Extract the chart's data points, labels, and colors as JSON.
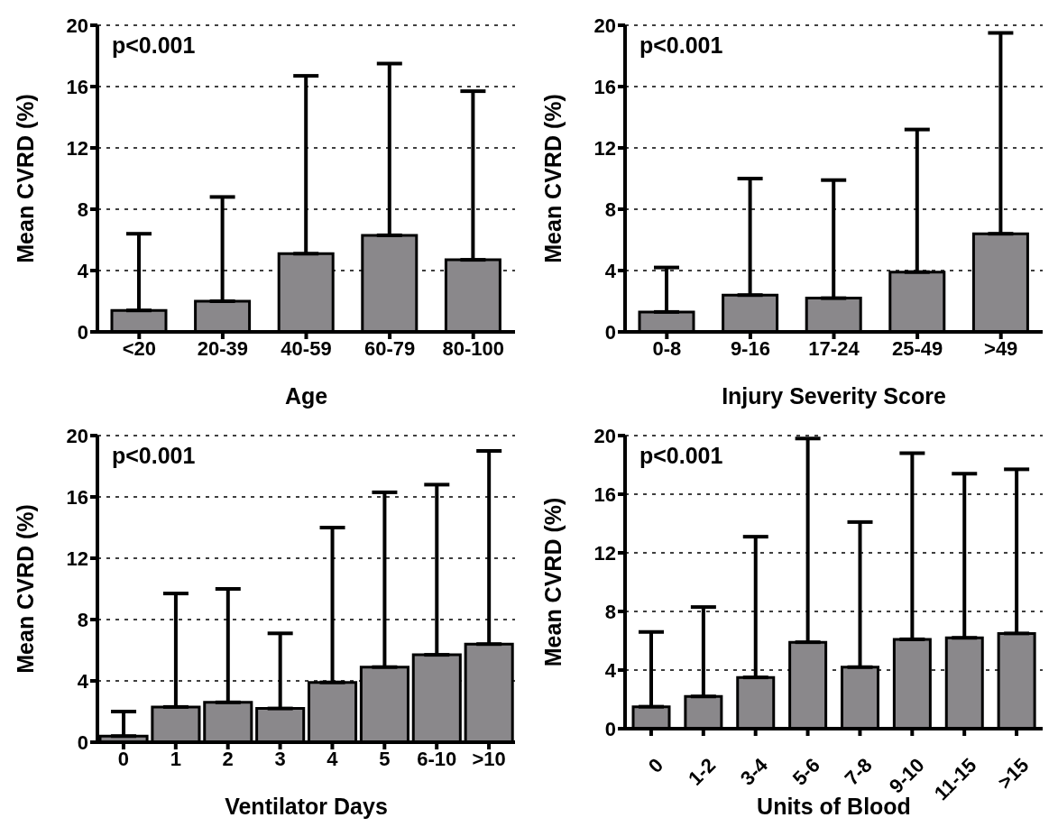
{
  "chart_data": [
    {
      "type": "bar",
      "xlabel": "Age",
      "ylabel": "Mean CVRD (%)",
      "categories": [
        "<20",
        "20-39",
        "40-59",
        "60-79",
        "80-100"
      ],
      "values": [
        1.4,
        2.0,
        5.1,
        6.3,
        4.7
      ],
      "errors": [
        [
          1.4,
          6.4
        ],
        [
          2.0,
          8.8
        ],
        [
          5.1,
          16.7
        ],
        [
          6.3,
          17.5
        ],
        [
          4.7,
          15.7
        ]
      ],
      "color": "#8a888b",
      "ylim": [
        0,
        20
      ],
      "yticks": [
        0,
        4,
        8,
        12,
        16,
        20
      ],
      "grid": "y",
      "annotations": [
        "p<0.001"
      ]
    },
    {
      "type": "bar",
      "xlabel": "Injury Severity Score",
      "ylabel": "Mean CVRD (%)",
      "categories": [
        "0-8",
        "9-16",
        "17-24",
        "25-49",
        ">49"
      ],
      "values": [
        1.3,
        2.4,
        2.2,
        3.9,
        6.4
      ],
      "errors": [
        [
          1.3,
          4.2
        ],
        [
          2.4,
          10.0
        ],
        [
          2.2,
          9.9
        ],
        [
          3.9,
          13.2
        ],
        [
          6.4,
          19.5
        ]
      ],
      "color": "#8a888b",
      "ylim": [
        0,
        20
      ],
      "yticks": [
        0,
        4,
        8,
        12,
        16,
        20
      ],
      "grid": "y",
      "annotations": [
        "p<0.001"
      ]
    },
    {
      "type": "bar",
      "xlabel": "Ventilator Days",
      "ylabel": "Mean CVRD (%)",
      "categories": [
        "0",
        "1",
        "2",
        "3",
        "4",
        "5",
        "6-10",
        ">10"
      ],
      "values": [
        0.4,
        2.3,
        2.6,
        2.2,
        3.9,
        4.9,
        5.7,
        6.4
      ],
      "errors": [
        [
          0.4,
          2.0
        ],
        [
          2.3,
          9.7
        ],
        [
          2.6,
          10.0
        ],
        [
          2.2,
          7.1
        ],
        [
          3.9,
          14.0
        ],
        [
          4.9,
          16.3
        ],
        [
          5.7,
          16.8
        ],
        [
          6.4,
          19.0
        ]
      ],
      "color": "#8a888b",
      "ylim": [
        0,
        20
      ],
      "yticks": [
        0,
        4,
        8,
        12,
        16,
        20
      ],
      "grid": "y",
      "annotations": [
        "p<0.001"
      ]
    },
    {
      "type": "bar",
      "xlabel": "Units of Blood",
      "ylabel": "Mean CVRD (%)",
      "categories": [
        "0",
        "1-2",
        "3-4",
        "5-6",
        "7-8",
        "9-10",
        "11-15",
        ">15"
      ],
      "values": [
        1.5,
        2.2,
        3.5,
        5.9,
        4.2,
        6.1,
        6.2,
        6.5
      ],
      "errors": [
        [
          1.5,
          6.6
        ],
        [
          2.2,
          8.3
        ],
        [
          3.5,
          13.1
        ],
        [
          5.9,
          19.8
        ],
        [
          4.2,
          14.1
        ],
        [
          6.1,
          18.8
        ],
        [
          6.2,
          17.4
        ],
        [
          6.5,
          17.7
        ]
      ],
      "color": "#8a888b",
      "ylim": [
        0,
        20
      ],
      "yticks": [
        0,
        4,
        8,
        12,
        16,
        20
      ],
      "grid": "y",
      "annotations": [
        "p<0.001"
      ]
    }
  ]
}
